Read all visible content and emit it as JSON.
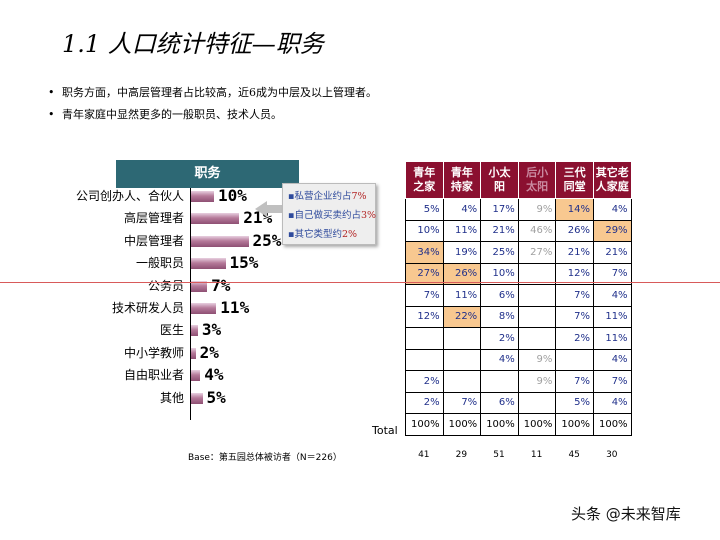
{
  "title": "1.1 人口统计特征—职务",
  "bullets": [
    "职务方面，中高层管理者占比较高，近6成为中层及以上管理者。",
    "青年家庭中显然更多的一般职员、技术人员。"
  ],
  "chart": {
    "header": "职务",
    "categories": [
      "公司创办人、合伙人",
      "高层管理者",
      "中层管理者",
      "一般职员",
      "公务员",
      "技术研发人员",
      "医生",
      "中小学教师",
      "自由职业者",
      "其他"
    ],
    "values": [
      10,
      21,
      25,
      15,
      7,
      11,
      3,
      2,
      4,
      5
    ],
    "labels": [
      "10%",
      "21%",
      "25%",
      "15%",
      "7%",
      "11%",
      "3%",
      "2%",
      "4%",
      "5%"
    ]
  },
  "callout": [
    {
      "text": "私营企业约占",
      "num": "7%"
    },
    {
      "text": "自己做买卖约占",
      "num": "3%"
    },
    {
      "text": "其它类型约",
      "num": "2%"
    }
  ],
  "table": {
    "headers": [
      [
        "青年",
        "之家"
      ],
      [
        "青年",
        "持家"
      ],
      [
        "小太",
        "阳"
      ],
      [
        "后小",
        "太阳"
      ],
      [
        "三代",
        "同堂"
      ],
      [
        "其它老",
        "人家庭"
      ]
    ],
    "rows": [
      [
        "5%",
        "4%",
        "17%",
        "9%",
        "14%",
        "4%"
      ],
      [
        "10%",
        "11%",
        "21%",
        "46%",
        "26%",
        "29%"
      ],
      [
        "34%",
        "19%",
        "25%",
        "27%",
        "21%",
        "21%"
      ],
      [
        "27%",
        "26%",
        "10%",
        "",
        "12%",
        "7%"
      ],
      [
        "7%",
        "11%",
        "6%",
        "",
        "7%",
        "4%"
      ],
      [
        "12%",
        "22%",
        "8%",
        "",
        "7%",
        "11%"
      ],
      [
        "",
        "",
        "2%",
        "",
        "2%",
        "11%"
      ],
      [
        "",
        "",
        "4%",
        "9%",
        "",
        "4%"
      ],
      [
        "2%",
        "",
        "",
        "9%",
        "7%",
        "7%"
      ],
      [
        "2%",
        "7%",
        "6%",
        "",
        "5%",
        "4%"
      ]
    ],
    "total_label": "Total",
    "total": [
      "100%",
      "100%",
      "100%",
      "100%",
      "100%",
      "100%"
    ],
    "counts": [
      "41",
      "29",
      "51",
      "11",
      "45",
      "30"
    ]
  },
  "base": "Base：第五园总体被访者（N＝226）",
  "watermark": "头条 @未来智库",
  "colors": {
    "header_bg": "#2d6874",
    "table_header": "#8b1030",
    "highlight": "#f8c890"
  }
}
